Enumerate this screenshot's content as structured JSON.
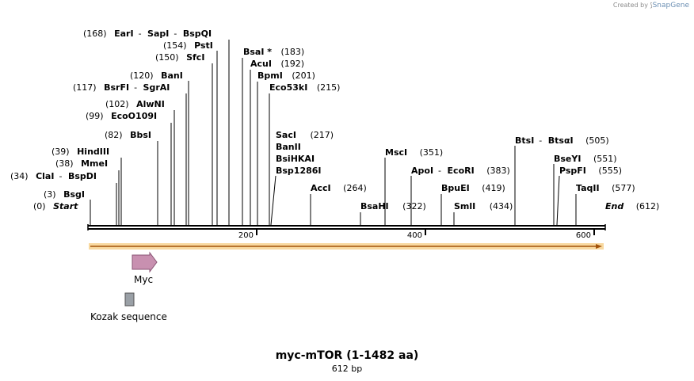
{
  "watermark": {
    "prefix": "Created by",
    "brand": "SnapGene"
  },
  "title": "myc-mTOR (1-1482 aa)",
  "subtitle": "612 bp",
  "sequence": {
    "length": 612,
    "ticks": [
      200,
      400,
      600
    ]
  },
  "features": [
    {
      "name": "Myc",
      "type": "arrow",
      "start": 53,
      "end": 82,
      "color": "#c890b0"
    },
    {
      "name": "Kozak sequence",
      "type": "box",
      "start": 43,
      "end": 53,
      "color": "#9aa0a6"
    }
  ],
  "sites": [
    {
      "text": "EarI",
      "pos": "",
      "sep": true
    },
    {
      "text": "SapI",
      "pos": "",
      "sep": true
    },
    {
      "text": "BspQI",
      "pos": "(168)"
    },
    {
      "text": "PstI",
      "pos": "(154)"
    },
    {
      "text": "SfcI",
      "pos": "(150)"
    },
    {
      "text": "BanI",
      "pos": "(120)"
    },
    {
      "text": "BsrFI",
      "pos": "",
      "sep": true
    },
    {
      "text": "SgrAI",
      "pos": "(117)"
    },
    {
      "text": "AlwNI",
      "pos": "(102)"
    },
    {
      "text": "EcoO109I",
      "pos": "(99)"
    },
    {
      "text": "BbsI",
      "pos": "(82)"
    },
    {
      "text": "HindIII",
      "pos": "(39)"
    },
    {
      "text": "MmeI",
      "pos": "(38)"
    },
    {
      "text": "ClaI",
      "pos": "",
      "sep": true
    },
    {
      "text": "BspDI",
      "pos": "(34)"
    },
    {
      "text": "BsgI",
      "pos": "(3)"
    },
    {
      "text": "Start",
      "pos": "(0)"
    },
    {
      "text": "BsaI *",
      "pos": "(183)"
    },
    {
      "text": "AcuI",
      "pos": "(192)"
    },
    {
      "text": "BpmI",
      "pos": "(201)"
    },
    {
      "text": "Eco53kI",
      "pos": "(215)"
    },
    {
      "text": "SacI",
      "pos": "(217)"
    },
    {
      "text": "BanII",
      "pos": ""
    },
    {
      "text": "BsiHKAI",
      "pos": ""
    },
    {
      "text": "Bsp1286I",
      "pos": ""
    },
    {
      "text": "AccI",
      "pos": "(264)"
    },
    {
      "text": "BsaHI",
      "pos": "(322)"
    },
    {
      "text": "MscI",
      "pos": "(351)"
    },
    {
      "text": "ApoI",
      "pos": "",
      "sep": true
    },
    {
      "text": "EcoRI",
      "pos": "(383)"
    },
    {
      "text": "BpuEI",
      "pos": "(419)"
    },
    {
      "text": "SmlI",
      "pos": "(434)"
    },
    {
      "text": "BtsI",
      "pos": "",
      "sep": true
    },
    {
      "text": "BtsαI",
      "pos": "(505)"
    },
    {
      "text": "BseYI",
      "pos": "(551)"
    },
    {
      "text": "PspFI",
      "pos": "(555)"
    },
    {
      "text": "TaqII",
      "pos": "(577)"
    },
    {
      "text": "End",
      "pos": "(612)"
    }
  ]
}
